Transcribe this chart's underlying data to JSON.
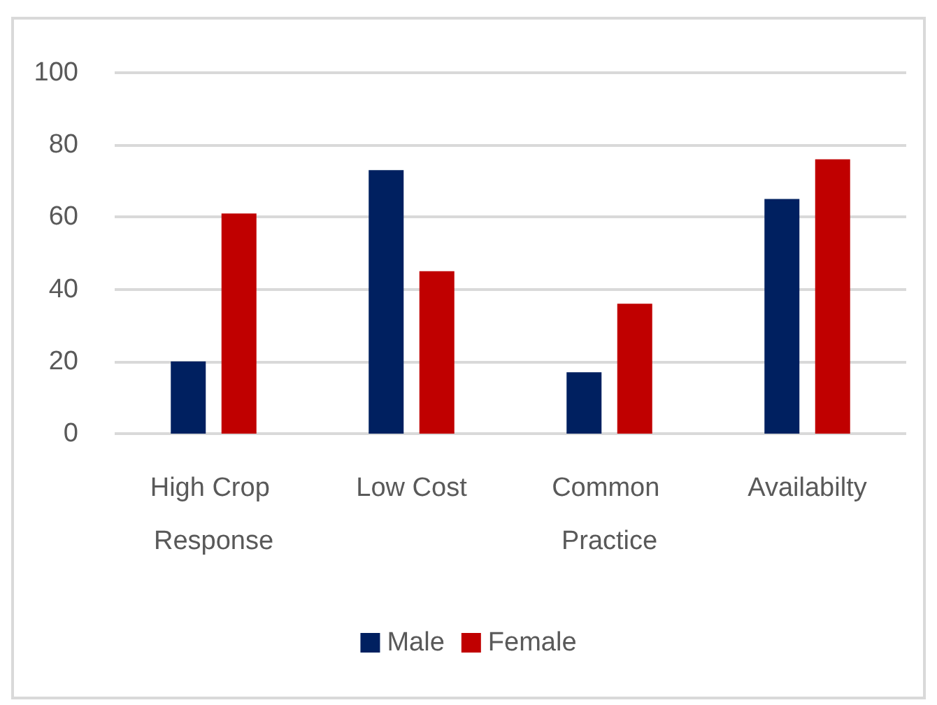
{
  "chart_data": {
    "type": "bar",
    "categories": [
      "High Crop Response",
      "Low Cost",
      "Common Practice",
      "Availabilty"
    ],
    "series": [
      {
        "name": "Male",
        "color": "#002060",
        "values": [
          20,
          73,
          17,
          65
        ]
      },
      {
        "name": "Female",
        "color": "#c00000",
        "values": [
          61,
          45,
          36,
          76
        ]
      }
    ],
    "ylim": [
      0,
      100
    ],
    "yticks": [
      0,
      20,
      40,
      60,
      80,
      100
    ],
    "grid": "y",
    "legend": "bottom"
  }
}
